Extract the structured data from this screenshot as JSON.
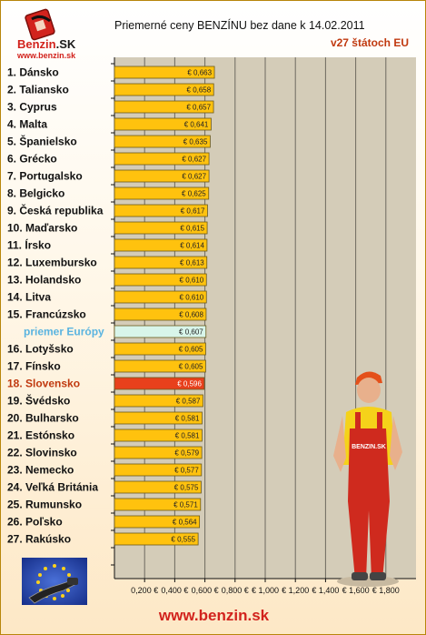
{
  "header": {
    "title": "Priemerné ceny BENZÍNU bez dane k 14.02.2011",
    "subtitle": "v27 štátoch EU"
  },
  "logo": {
    "name_main": "Benzin",
    "name_suffix": ".SK",
    "url": "www.benzin.sk"
  },
  "footer": {
    "url": "www.benzin.sk"
  },
  "mechanic": {
    "overall_text": "BENZIN.SK"
  },
  "colors": {
    "bar": "#ffc20e",
    "bar_average": "#d8f5ea",
    "bar_slovakia": "#e8401c",
    "plot_background": "#d4ccb8",
    "label_average": "#5ab4e0",
    "label_slovakia": "#c0390f"
  },
  "chart_data": {
    "type": "bar",
    "orientation": "horizontal",
    "title": "Priemerné ceny BENZÍNU bez dane k 14.02.2011",
    "subtitle": "v27 štátoch EU",
    "categories": [
      "1. Dánsko",
      "2. Taliansko",
      "3. Cyprus",
      "4. Malta",
      "5. Španielsko",
      "6. Grécko",
      "7. Portugalsko",
      "8. Belgicko",
      "9. Česká republika",
      "10. Maďarsko",
      "11. Írsko",
      "12. Luxembursko",
      "13. Holandsko",
      "14. Litva",
      "15. Francúzsko",
      "priemer Európy",
      "16. Lotyšsko",
      "17. Fínsko",
      "18. Slovensko",
      "19. Švédsko",
      "20. Bulharsko",
      "21. Estónsko",
      "22. Slovinsko",
      "23. Nemecko",
      "24. Veľká Británia",
      "25. Rumunsko",
      "26. Poľsko",
      "27. Rakúsko"
    ],
    "values": [
      0.663,
      0.658,
      0.657,
      0.641,
      0.635,
      0.627,
      0.627,
      0.625,
      0.617,
      0.615,
      0.614,
      0.613,
      0.61,
      0.61,
      0.608,
      0.607,
      0.605,
      0.605,
      0.596,
      0.587,
      0.581,
      0.581,
      0.579,
      0.577,
      0.575,
      0.571,
      0.564,
      0.555
    ],
    "value_labels": [
      "€ 0,663",
      "€ 0,658",
      "€ 0,657",
      "€ 0,641",
      "€ 0,635",
      "€ 0,627",
      "€ 0,627",
      "€ 0,625",
      "€ 0,617",
      "€ 0,615",
      "€ 0,614",
      "€ 0,613",
      "€ 0,610",
      "€ 0,610",
      "€ 0,608",
      "€ 0,607",
      "€ 0,605",
      "€ 0,605",
      "€ 0,596",
      "€ 0,587",
      "€ 0,581",
      "€ 0,581",
      "€ 0,579",
      "€ 0,577",
      "€ 0,575",
      "€ 0,571",
      "€ 0,564",
      "€ 0,555"
    ],
    "highlight": {
      "average": "priemer Európy",
      "slovakia": "18. Slovensko"
    },
    "xlim": [
      0,
      2.0
    ],
    "x_ticks": [
      0.2,
      0.4,
      0.6,
      0.8,
      1.0,
      1.2,
      1.4,
      1.6,
      1.8
    ],
    "x_tick_labels": [
      "0,200 €",
      "0,400 €",
      "0,600 €",
      "0,800 €",
      "€ 1,000",
      "€ 1,200",
      "€ 1,400",
      "€ 1,600",
      "€ 1,800"
    ],
    "grid": true,
    "legend": "none"
  }
}
